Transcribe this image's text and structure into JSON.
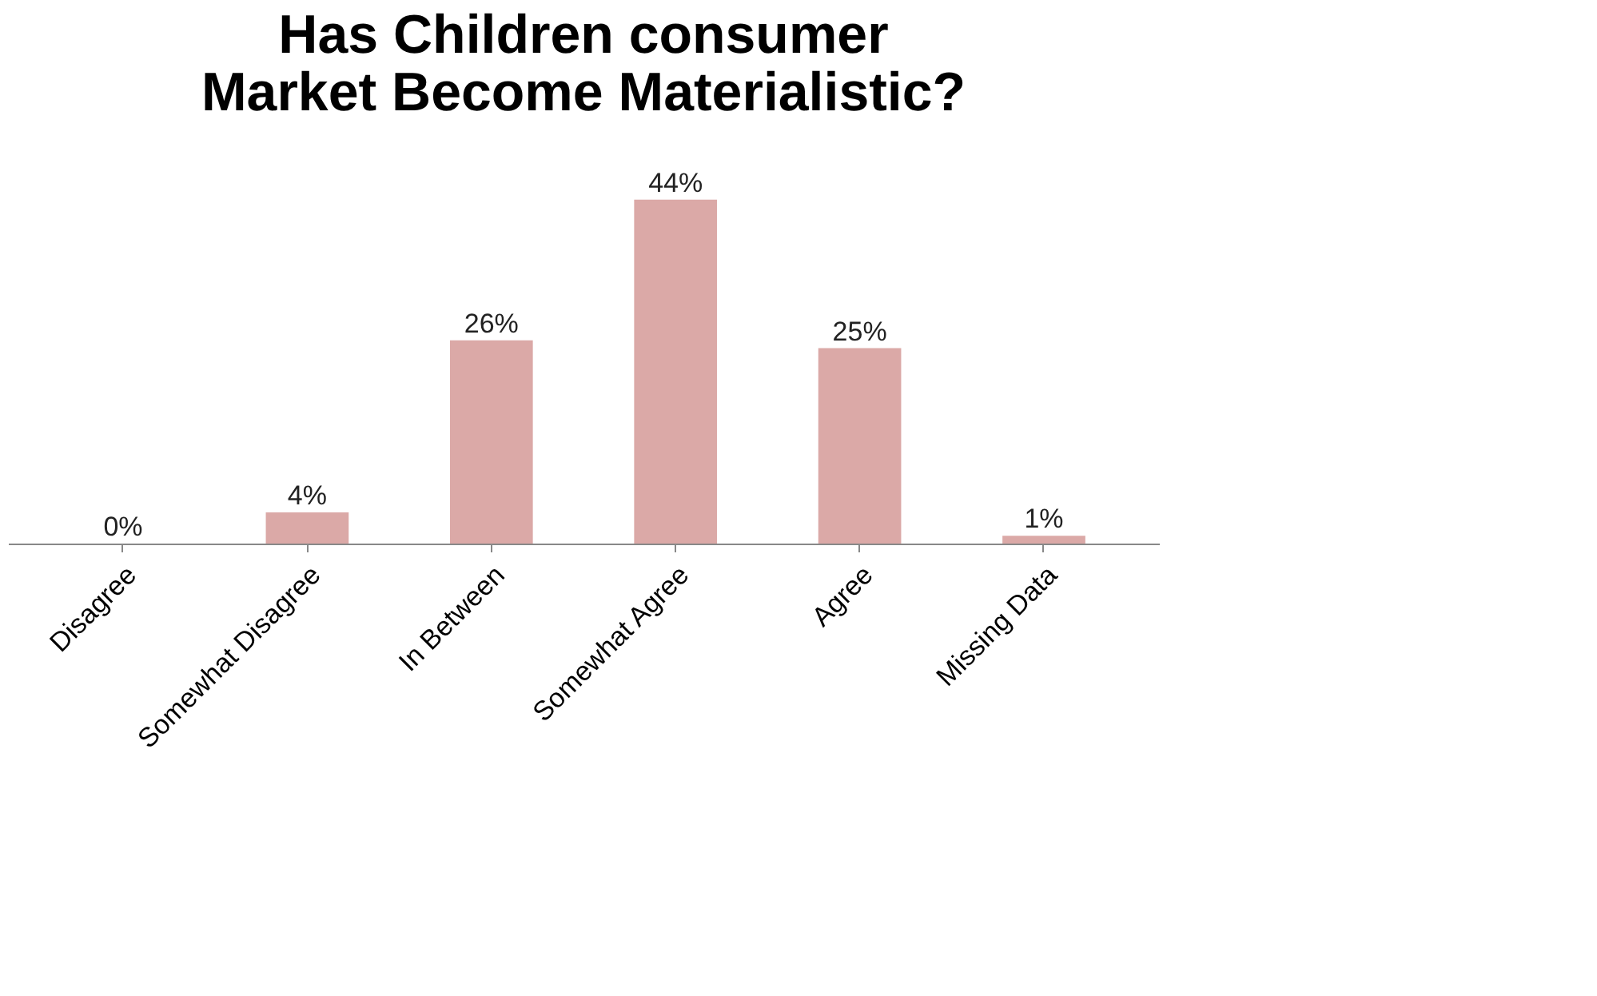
{
  "chart_data": {
    "type": "bar",
    "title": "Has Children consumer Market Become Materialistic?",
    "categories": [
      "Disagree",
      "Somewhat Disagree",
      "In Between",
      "Somewhat Agree",
      "Agree",
      "Missing Data"
    ],
    "values": [
      0,
      4,
      26,
      44,
      25,
      1
    ],
    "value_labels": [
      "0%",
      "4%",
      "26%",
      "44%",
      "25%",
      "1%"
    ],
    "color": "#dba9a7",
    "grid": false
  }
}
